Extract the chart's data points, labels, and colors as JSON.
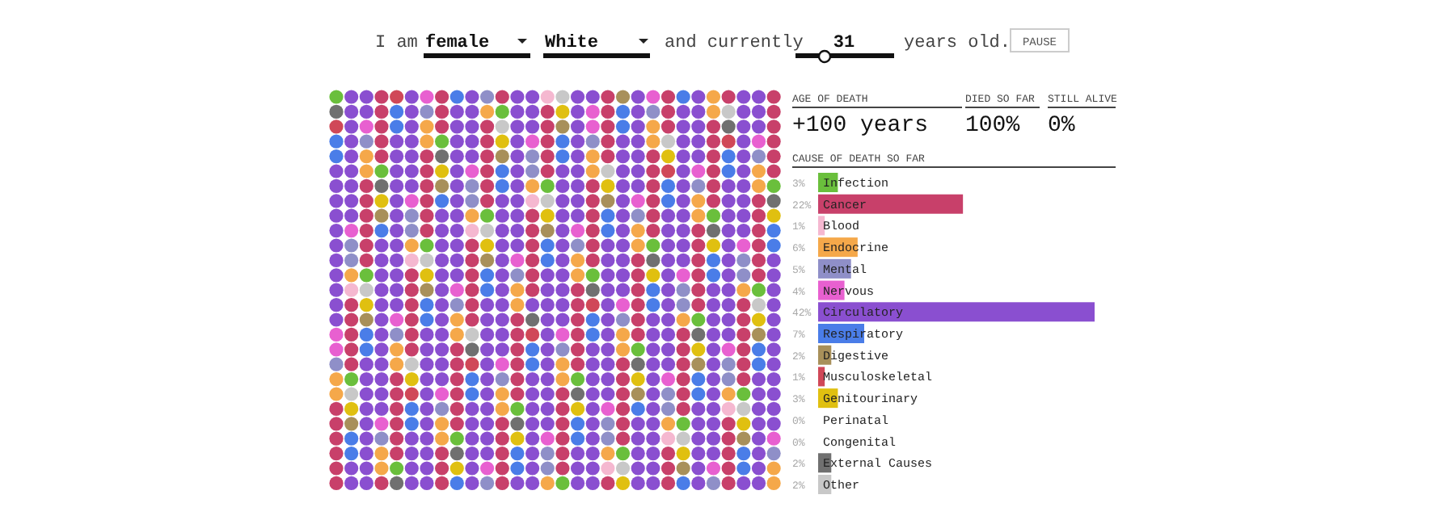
{
  "chart_data": {
    "type": "bar",
    "orientation": "horizontal",
    "title": "CAUSE OF DEATH SO FAR",
    "categories": [
      "Infection",
      "Cancer",
      "Blood",
      "Endocrine",
      "Mental",
      "Nervous",
      "Circulatory",
      "Respiratory",
      "Digestive",
      "Musculoskeletal",
      "Genitourinary",
      "Perinatal",
      "Congenital",
      "External Causes",
      "Other"
    ],
    "values": [
      3,
      22,
      1,
      6,
      5,
      4,
      42,
      7,
      2,
      1,
      3,
      0,
      0,
      2,
      2
    ],
    "value_labels": [
      "3%",
      "22%",
      "1%",
      "6%",
      "5%",
      "4%",
      "42%",
      "7%",
      "2%",
      "1%",
      "3%",
      "0%",
      "0%",
      "2%",
      "2%"
    ],
    "colors": [
      "#6abf3c",
      "#c8406a",
      "#f5b8d0",
      "#f5a84a",
      "#8f8fc8",
      "#e860d0",
      "#8a4fd0",
      "#4a7de8",
      "#a8905a",
      "#d04858",
      "#e0c010",
      "#e8e8e8",
      "#e8e8e8",
      "#707070",
      "#c8c8c8"
    ],
    "annotations": [
      "I am",
      "female",
      "White",
      "and currently",
      "31",
      "years old.",
      "PAUSE",
      "AGE OF DEATH",
      "+100 years",
      "DIED SO FAR",
      "100%",
      "STILL ALIVE",
      "0%"
    ]
  }
}
